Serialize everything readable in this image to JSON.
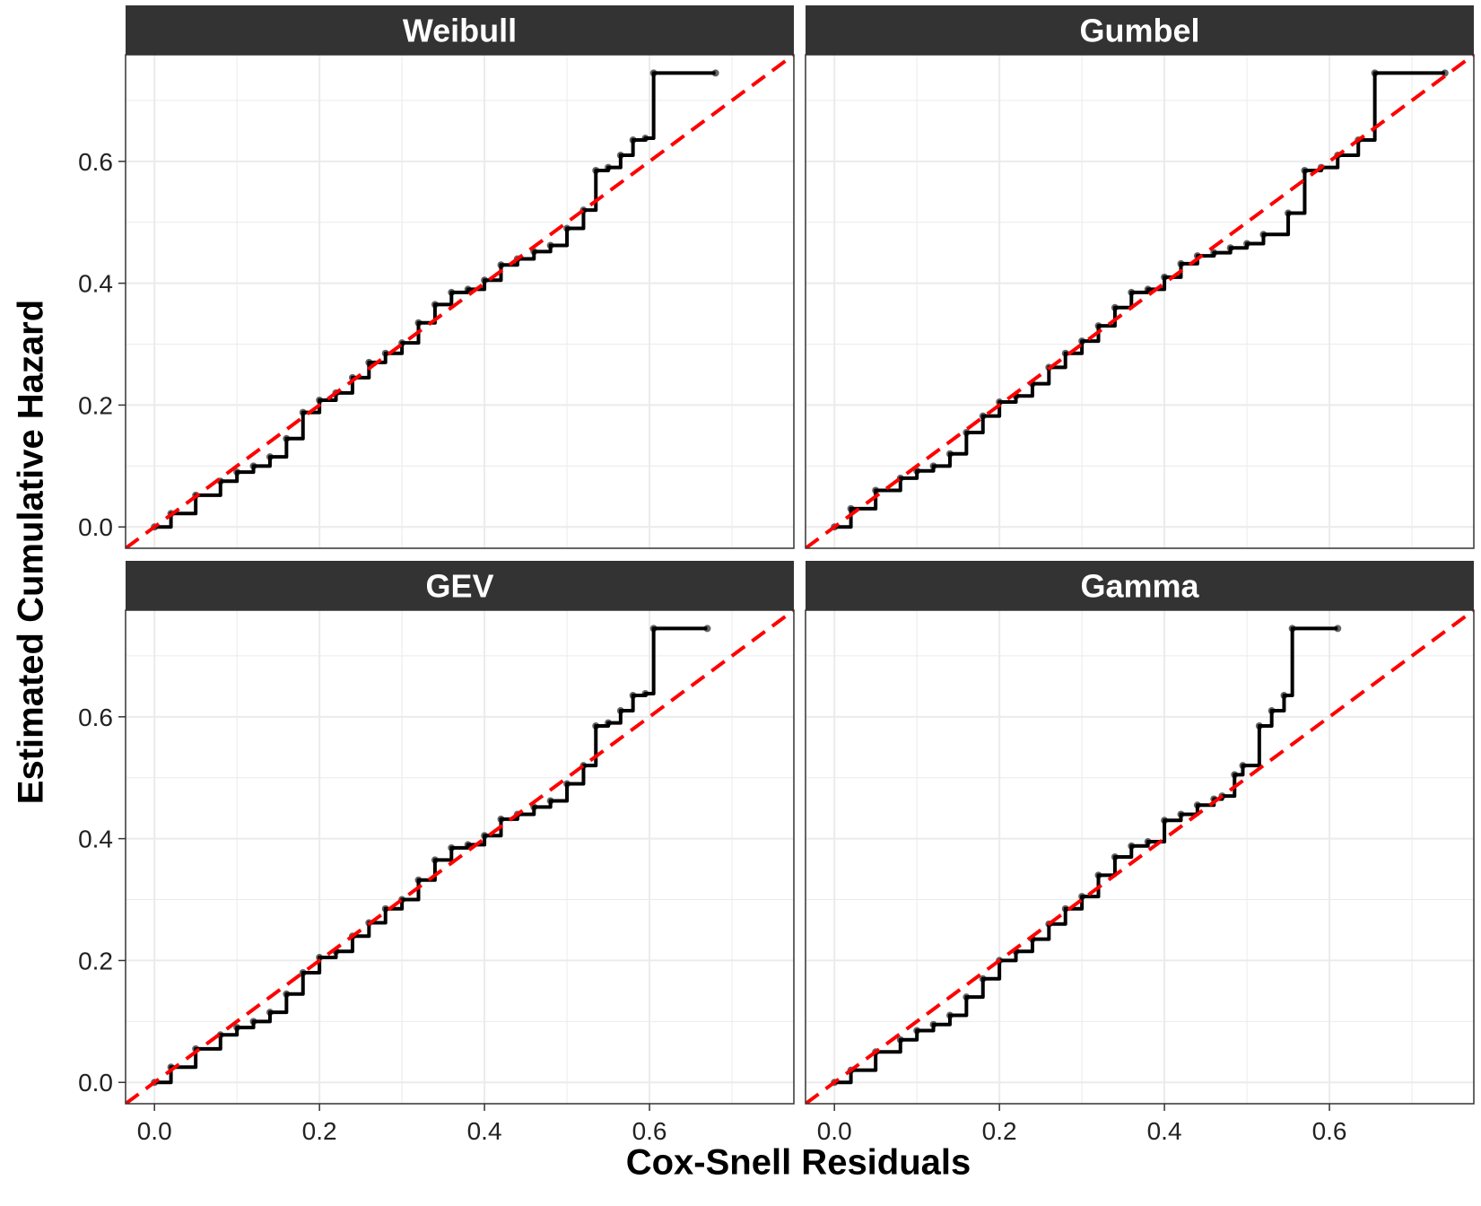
{
  "x_axis_title": "Cox-Snell Residuals",
  "y_axis_title": "Estimated Cumulative Hazard",
  "colors": {
    "strip_bg": "#333333",
    "strip_text": "#ffffff",
    "grid": "#ebebeb",
    "panel_border": "#333333",
    "step_line": "#000000",
    "reference_line": "#ff0000"
  },
  "chart_data": [
    {
      "type": "line",
      "title": "Weibull",
      "xlim": [
        -0.035,
        0.775
      ],
      "ylim": [
        -0.035,
        0.775
      ],
      "x_ticks": [
        0.0,
        0.2,
        0.4,
        0.6
      ],
      "x_tick_labels": [
        "0.0",
        "0.2",
        "0.4",
        "0.6"
      ],
      "y_ticks": [
        0.0,
        0.2,
        0.4,
        0.6
      ],
      "y_tick_labels": [
        "0.0",
        "0.2",
        "0.4",
        "0.6"
      ],
      "grid": true,
      "reference_line": {
        "slope": 1,
        "intercept": 0,
        "style": "dashed"
      },
      "series": [
        {
          "style": "step-with-points",
          "x": [
            0.0,
            0.02,
            0.05,
            0.08,
            0.1,
            0.12,
            0.14,
            0.16,
            0.18,
            0.2,
            0.22,
            0.24,
            0.26,
            0.28,
            0.3,
            0.32,
            0.34,
            0.36,
            0.38,
            0.4,
            0.42,
            0.44,
            0.46,
            0.48,
            0.5,
            0.52,
            0.535,
            0.55,
            0.565,
            0.58,
            0.595,
            0.605,
            0.68
          ],
          "y": [
            0.0,
            0.022,
            0.052,
            0.075,
            0.09,
            0.1,
            0.115,
            0.145,
            0.188,
            0.208,
            0.22,
            0.245,
            0.27,
            0.285,
            0.302,
            0.335,
            0.365,
            0.385,
            0.39,
            0.405,
            0.43,
            0.44,
            0.452,
            0.462,
            0.49,
            0.52,
            0.585,
            0.59,
            0.61,
            0.635,
            0.638,
            0.745,
            0.745
          ]
        }
      ]
    },
    {
      "type": "line",
      "title": "Gumbel",
      "xlim": [
        -0.035,
        0.775
      ],
      "ylim": [
        -0.035,
        0.775
      ],
      "x_ticks": [
        0.0,
        0.2,
        0.4,
        0.6
      ],
      "x_tick_labels": [
        "0.0",
        "0.2",
        "0.4",
        "0.6"
      ],
      "y_ticks": [
        0.0,
        0.2,
        0.4,
        0.6
      ],
      "y_tick_labels": [
        "0.0",
        "0.2",
        "0.4",
        "0.6"
      ],
      "grid": true,
      "reference_line": {
        "slope": 1,
        "intercept": 0,
        "style": "dashed"
      },
      "series": [
        {
          "style": "step-with-points",
          "x": [
            0.0,
            0.02,
            0.05,
            0.08,
            0.1,
            0.12,
            0.14,
            0.16,
            0.18,
            0.2,
            0.22,
            0.24,
            0.26,
            0.28,
            0.3,
            0.32,
            0.34,
            0.36,
            0.38,
            0.4,
            0.42,
            0.44,
            0.46,
            0.48,
            0.5,
            0.52,
            0.55,
            0.57,
            0.59,
            0.61,
            0.635,
            0.655,
            0.74
          ],
          "y": [
            0.0,
            0.03,
            0.06,
            0.08,
            0.092,
            0.1,
            0.12,
            0.155,
            0.182,
            0.205,
            0.215,
            0.235,
            0.262,
            0.285,
            0.305,
            0.33,
            0.36,
            0.385,
            0.39,
            0.41,
            0.432,
            0.445,
            0.45,
            0.458,
            0.465,
            0.48,
            0.515,
            0.585,
            0.59,
            0.61,
            0.635,
            0.745,
            0.745
          ]
        }
      ]
    },
    {
      "type": "line",
      "title": "GEV",
      "xlim": [
        -0.035,
        0.775
      ],
      "ylim": [
        -0.035,
        0.775
      ],
      "x_ticks": [
        0.0,
        0.2,
        0.4,
        0.6
      ],
      "x_tick_labels": [
        "0.0",
        "0.2",
        "0.4",
        "0.6"
      ],
      "y_ticks": [
        0.0,
        0.2,
        0.4,
        0.6
      ],
      "y_tick_labels": [
        "0.0",
        "0.2",
        "0.4",
        "0.6"
      ],
      "grid": true,
      "reference_line": {
        "slope": 1,
        "intercept": 0,
        "style": "dashed"
      },
      "series": [
        {
          "style": "step-with-points",
          "x": [
            0.0,
            0.02,
            0.05,
            0.08,
            0.1,
            0.12,
            0.14,
            0.16,
            0.18,
            0.2,
            0.22,
            0.24,
            0.26,
            0.28,
            0.3,
            0.32,
            0.34,
            0.36,
            0.38,
            0.4,
            0.42,
            0.44,
            0.46,
            0.48,
            0.5,
            0.52,
            0.535,
            0.55,
            0.565,
            0.58,
            0.595,
            0.605,
            0.67
          ],
          "y": [
            0.0,
            0.025,
            0.055,
            0.078,
            0.09,
            0.1,
            0.115,
            0.145,
            0.18,
            0.205,
            0.215,
            0.24,
            0.262,
            0.285,
            0.3,
            0.332,
            0.365,
            0.385,
            0.39,
            0.405,
            0.432,
            0.44,
            0.452,
            0.462,
            0.49,
            0.52,
            0.585,
            0.59,
            0.61,
            0.635,
            0.638,
            0.745,
            0.745
          ]
        }
      ]
    },
    {
      "type": "line",
      "title": "Gamma",
      "xlim": [
        -0.035,
        0.775
      ],
      "ylim": [
        -0.035,
        0.775
      ],
      "x_ticks": [
        0.0,
        0.2,
        0.4,
        0.6
      ],
      "x_tick_labels": [
        "0.0",
        "0.2",
        "0.4",
        "0.6"
      ],
      "y_ticks": [
        0.0,
        0.2,
        0.4,
        0.6
      ],
      "y_tick_labels": [
        "0.0",
        "0.2",
        "0.4",
        "0.6"
      ],
      "grid": true,
      "reference_line": {
        "slope": 1,
        "intercept": 0,
        "style": "dashed"
      },
      "series": [
        {
          "style": "step-with-points",
          "x": [
            0.0,
            0.02,
            0.05,
            0.08,
            0.1,
            0.12,
            0.14,
            0.16,
            0.18,
            0.2,
            0.22,
            0.24,
            0.26,
            0.28,
            0.3,
            0.32,
            0.34,
            0.36,
            0.38,
            0.4,
            0.42,
            0.44,
            0.46,
            0.47,
            0.485,
            0.495,
            0.515,
            0.53,
            0.545,
            0.555,
            0.61
          ],
          "y": [
            0.0,
            0.02,
            0.05,
            0.07,
            0.085,
            0.095,
            0.11,
            0.14,
            0.17,
            0.2,
            0.215,
            0.235,
            0.26,
            0.285,
            0.305,
            0.34,
            0.37,
            0.388,
            0.395,
            0.43,
            0.44,
            0.455,
            0.465,
            0.47,
            0.505,
            0.52,
            0.585,
            0.61,
            0.635,
            0.745,
            0.745
          ]
        }
      ]
    }
  ]
}
